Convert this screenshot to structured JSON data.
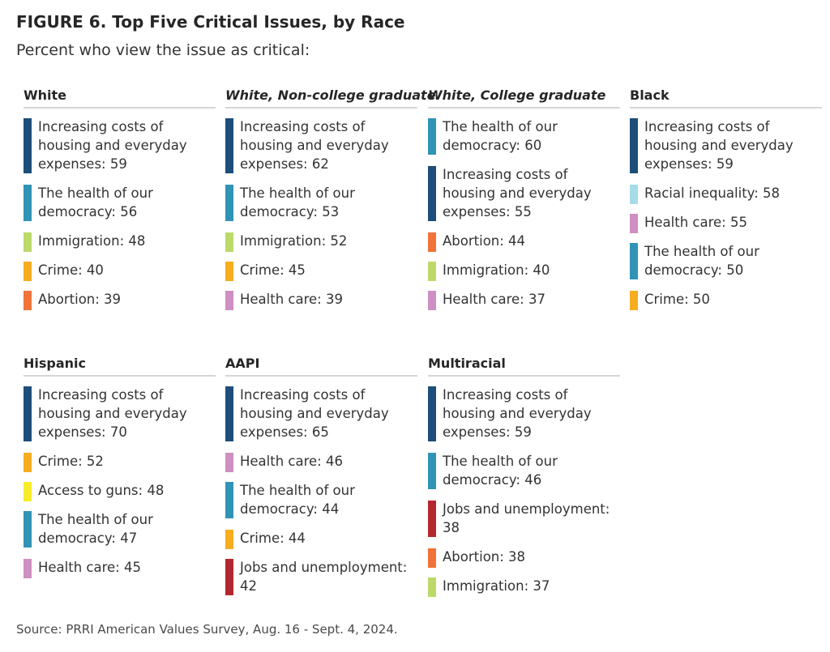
{
  "figure": {
    "title": "FIGURE 6.  Top Five Critical Issues, by Race",
    "subtitle": "Percent who view the issue as critical:",
    "source": "Source: PRRI American Values Survey, Aug. 16 - Sept. 4, 2024."
  },
  "colors": {
    "Increasing costs of housing and everyday expenses": "#1d4e7a",
    "The health of our democracy": "#3193b5",
    "Immigration": "#bcd96a",
    "Crime": "#f6ad1f",
    "Abortion": "#f0733a",
    "Health care": "#ce8fc2",
    "Racial inequality": "#a7dbe6",
    "Access to guns": "#f7ec29",
    "Jobs and unemployment": "#b3282e"
  },
  "chart_data": {
    "type": "table",
    "title": "FIGURE 6.  Top Five Critical Issues, by Race",
    "subtitle": "Percent who view the issue as critical:",
    "panels": [
      {
        "name": "White",
        "italic": false,
        "items": [
          {
            "label": "Increasing costs of housing and everyday expenses: 59",
            "issue": "Increasing costs of housing and everyday expenses",
            "value": 59
          },
          {
            "label": "The health of our democracy: 56",
            "issue": "The health of our democracy",
            "value": 56
          },
          {
            "label": "Immigration: 48",
            "issue": "Immigration",
            "value": 48
          },
          {
            "label": "Crime: 40",
            "issue": "Crime",
            "value": 40
          },
          {
            "label": "Abortion: 39",
            "issue": "Abortion",
            "value": 39
          }
        ]
      },
      {
        "name": "White, Non-college graduate",
        "italic": true,
        "items": [
          {
            "label": "Increasing costs of housing and everyday expenses: 62",
            "issue": "Increasing costs of housing and everyday expenses",
            "value": 62
          },
          {
            "label": "The health of our democracy: 53",
            "issue": "The health of our democracy",
            "value": 53
          },
          {
            "label": "Immigration: 52",
            "issue": "Immigration",
            "value": 52
          },
          {
            "label": "Crime: 45",
            "issue": "Crime",
            "value": 45
          },
          {
            "label": "Health care: 39",
            "issue": "Health care",
            "value": 39
          }
        ]
      },
      {
        "name": "White, College graduate",
        "italic": true,
        "items": [
          {
            "label": "The health of our democracy: 60",
            "issue": "The health of our democracy",
            "value": 60
          },
          {
            "label": "Increasing costs of housing and everyday expenses: 55",
            "issue": "Increasing costs of housing and everyday expenses",
            "value": 55
          },
          {
            "label": "Abortion: 44",
            "issue": "Abortion",
            "value": 44
          },
          {
            "label": "Immigration: 40",
            "issue": "Immigration",
            "value": 40
          },
          {
            "label": "Health care: 37",
            "issue": "Health care",
            "value": 37
          }
        ]
      },
      {
        "name": "Black",
        "italic": false,
        "items": [
          {
            "label": "Increasing costs of housing and everyday expenses: 59",
            "issue": "Increasing costs of housing and everyday expenses",
            "value": 59
          },
          {
            "label": "Racial inequality: 58",
            "issue": "Racial inequality",
            "value": 58
          },
          {
            "label": "Health care: 55",
            "issue": "Health care",
            "value": 55
          },
          {
            "label": "The health of our democracy: 50",
            "issue": "The health of our democracy",
            "value": 50
          },
          {
            "label": "Crime: 50",
            "issue": "Crime",
            "value": 50
          }
        ]
      },
      {
        "name": "Hispanic",
        "italic": false,
        "items": [
          {
            "label": "Increasing costs of housing and everyday expenses: 70",
            "issue": "Increasing costs of housing and everyday expenses",
            "value": 70
          },
          {
            "label": "Crime: 52",
            "issue": "Crime",
            "value": 52
          },
          {
            "label": "Access to guns: 48",
            "issue": "Access to guns",
            "value": 48
          },
          {
            "label": "The health of our democracy: 47",
            "issue": "The health of our democracy",
            "value": 47
          },
          {
            "label": "Health care: 45",
            "issue": "Health care",
            "value": 45
          }
        ]
      },
      {
        "name": "AAPI",
        "italic": false,
        "items": [
          {
            "label": "Increasing costs of housing and everyday expenses: 65",
            "issue": "Increasing costs of housing and everyday expenses",
            "value": 65
          },
          {
            "label": "Health care: 46",
            "issue": "Health care",
            "value": 46
          },
          {
            "label": "The health of our democracy: 44",
            "issue": "The health of our democracy",
            "value": 44
          },
          {
            "label": "Crime: 44",
            "issue": "Crime",
            "value": 44
          },
          {
            "label": "Jobs and unemployment: 42",
            "issue": "Jobs and unemployment",
            "value": 42
          }
        ]
      },
      {
        "name": "Multiracial",
        "italic": false,
        "items": [
          {
            "label": "Increasing costs of housing and everyday expenses: 59",
            "issue": "Increasing costs of housing and everyday expenses",
            "value": 59
          },
          {
            "label": "The health of our democracy: 46",
            "issue": "The health of our democracy",
            "value": 46
          },
          {
            "label": "Jobs and unemployment: 38",
            "issue": "Jobs and unemployment",
            "value": 38
          },
          {
            "label": "Abortion: 38",
            "issue": "Abortion",
            "value": 38
          },
          {
            "label": "Immigration: 37",
            "issue": "Immigration",
            "value": 37
          }
        ]
      }
    ]
  }
}
